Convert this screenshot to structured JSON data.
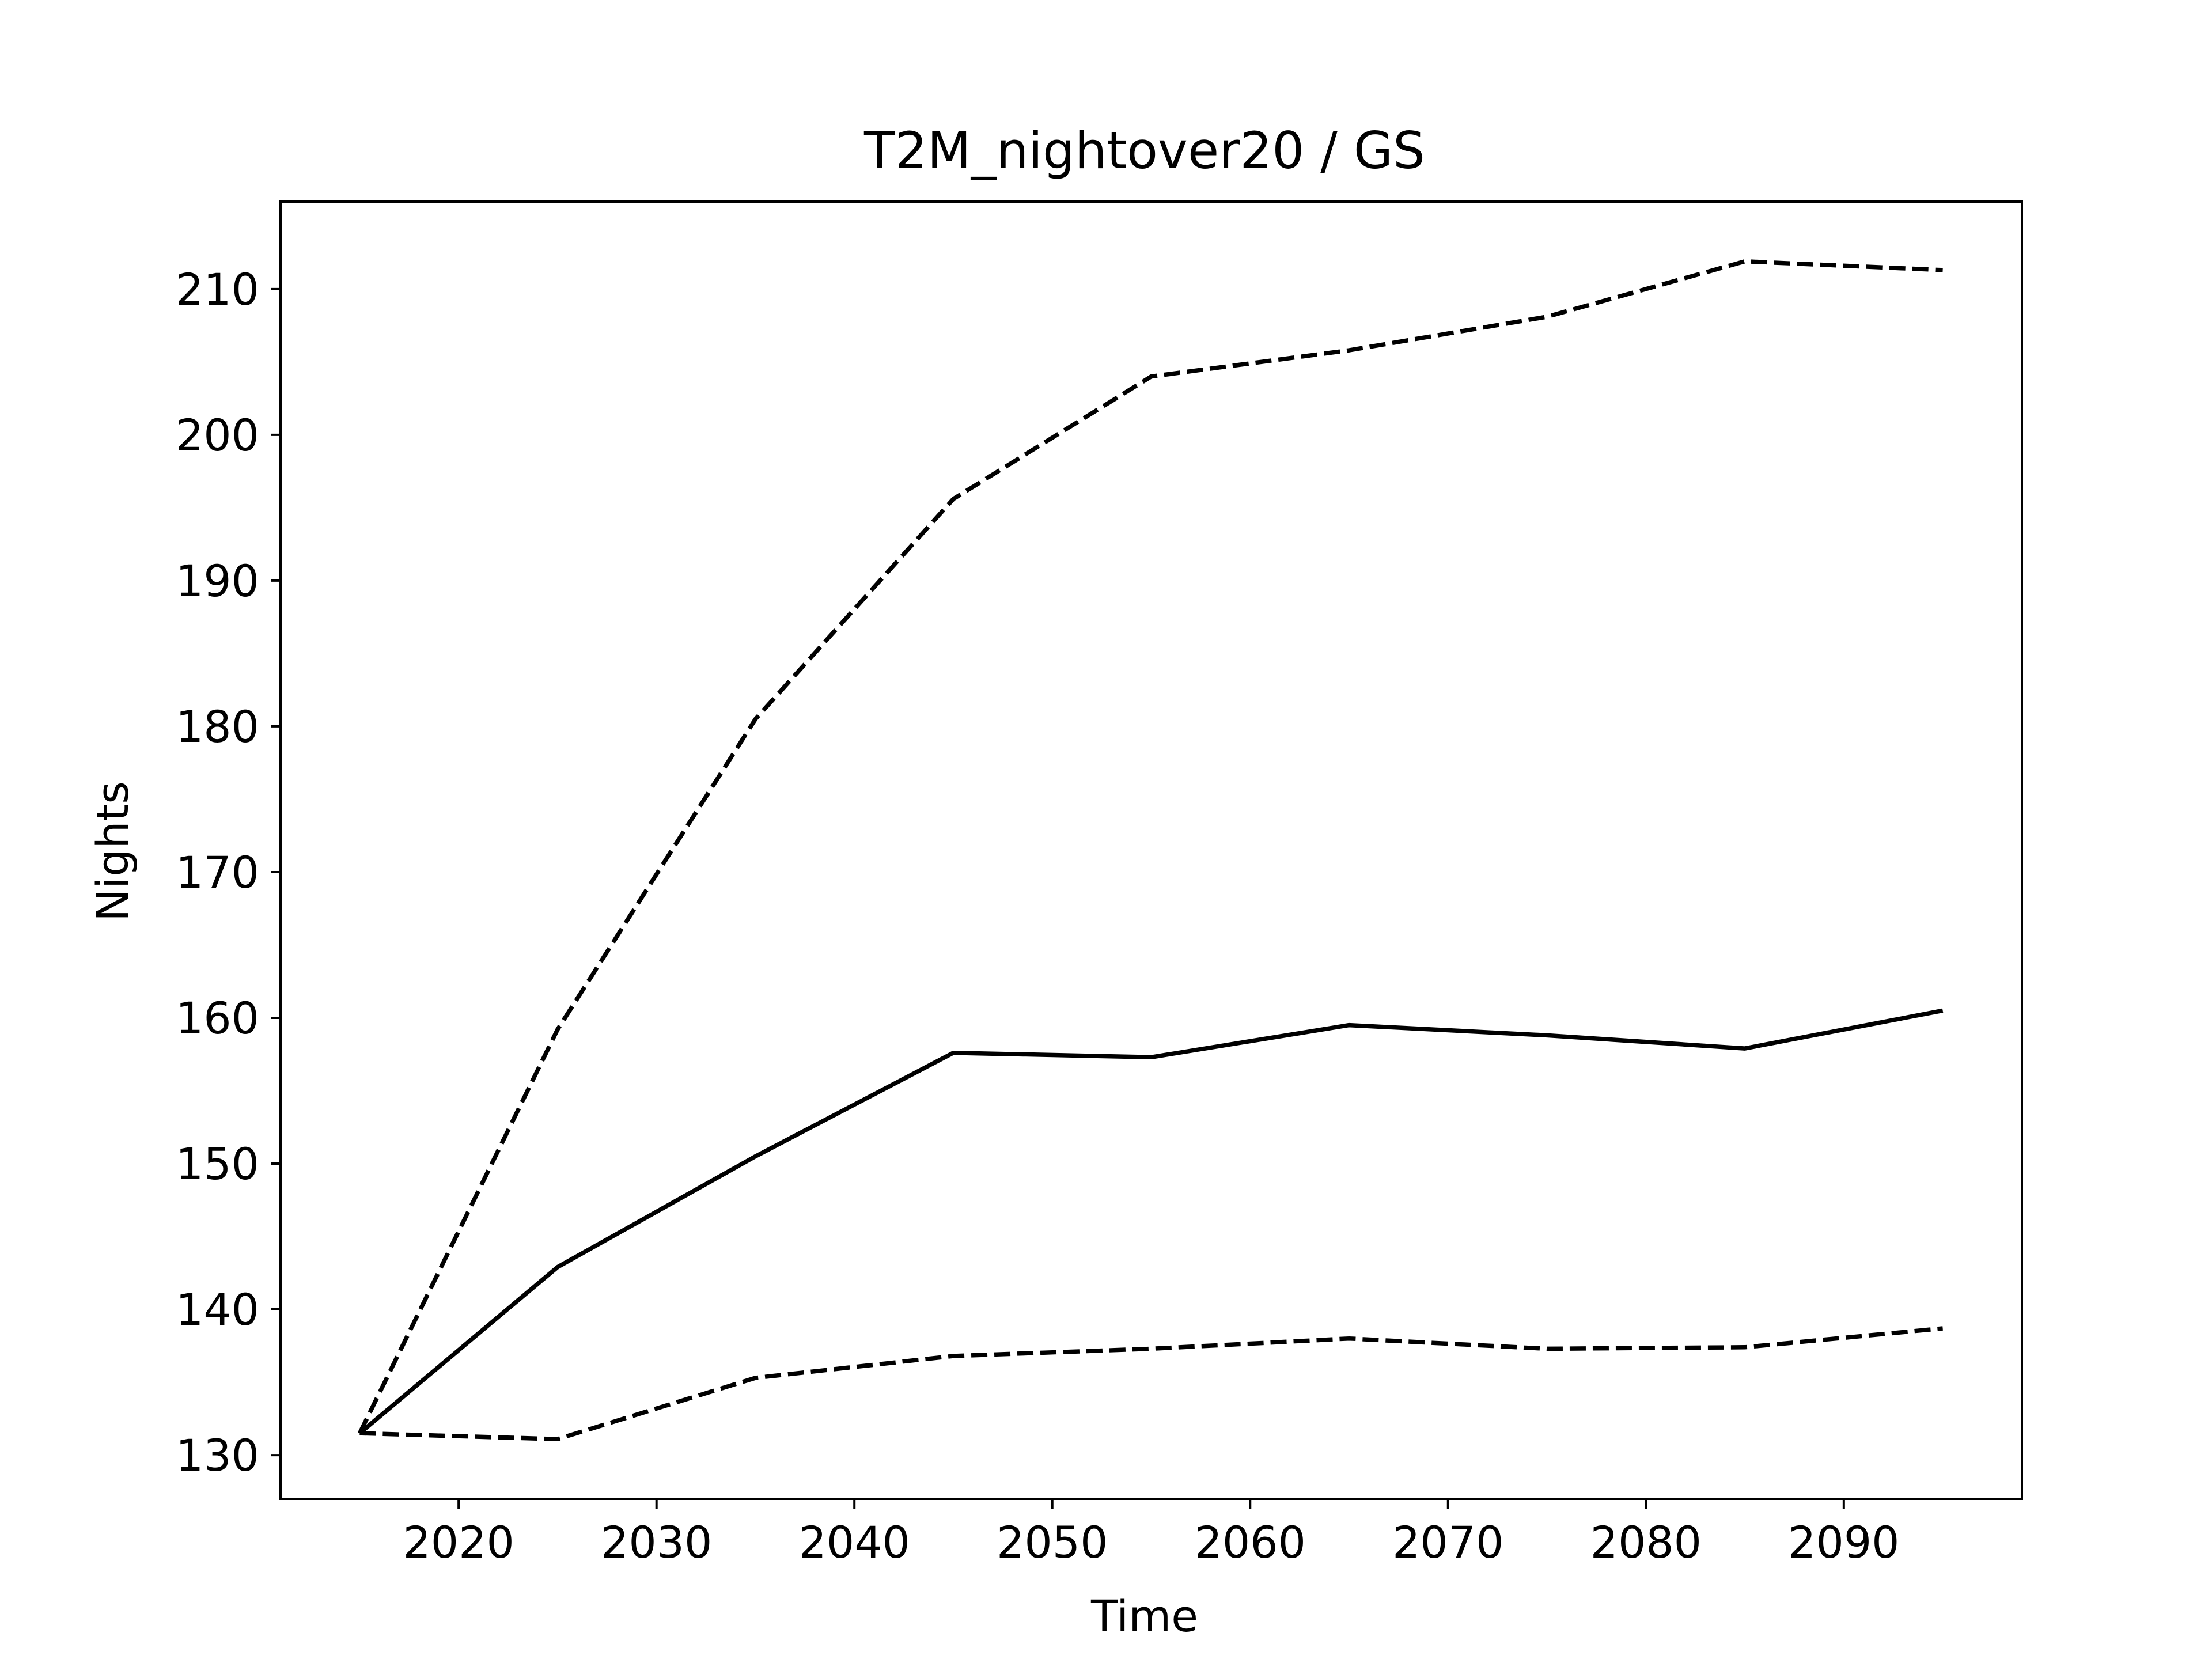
{
  "chart_data": {
    "type": "line",
    "title": "T2M_nightover20 / GS",
    "xlabel": "Time",
    "ylabel": "Nights",
    "xlim": [
      2011.0,
      2099.0
    ],
    "ylim": [
      127.0,
      216.0
    ],
    "xticks": [
      2020,
      2030,
      2040,
      2050,
      2060,
      2070,
      2080,
      2090
    ],
    "yticks": [
      130,
      140,
      150,
      160,
      170,
      180,
      190,
      200,
      210
    ],
    "grid": false,
    "x": [
      2015,
      2025,
      2035,
      2045,
      2055,
      2065,
      2075,
      2085,
      2095
    ],
    "series": [
      {
        "style": "solid",
        "color": "#000000",
        "values": [
          131.5,
          142.9,
          150.5,
          157.6,
          157.3,
          159.5,
          158.8,
          157.9,
          160.5
        ]
      },
      {
        "style": "dashed",
        "color": "#000000",
        "values": [
          131.5,
          159.2,
          180.5,
          195.6,
          204.0,
          205.8,
          208.1,
          211.9,
          211.3
        ]
      },
      {
        "style": "dashed",
        "color": "#000000",
        "values": [
          131.5,
          131.1,
          135.3,
          136.8,
          137.3,
          138.0,
          137.3,
          137.4,
          138.7
        ]
      }
    ]
  }
}
